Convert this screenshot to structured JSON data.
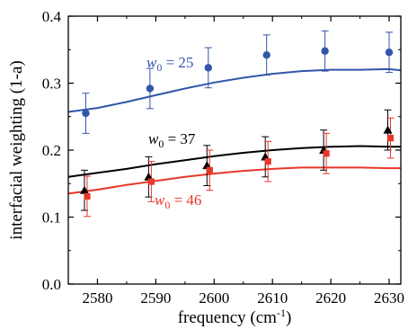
{
  "chart_data": {
    "type": "scatter",
    "xlabel_main": "frequency (cm",
    "xlabel_sup": "-1",
    "xlabel_tail": ")",
    "ylabel": "interfacial weighting (1-a)",
    "xlim": [
      2575,
      2632
    ],
    "ylim": [
      0.0,
      0.4
    ],
    "xticks": [
      2580,
      2590,
      2600,
      2610,
      2620,
      2630
    ],
    "yticks": [
      0.0,
      0.1,
      0.2,
      0.3,
      0.4
    ],
    "ytick_labels": [
      "0.0",
      "0.1",
      "0.2",
      "0.3",
      "0.4"
    ],
    "grid": false,
    "series": [
      {
        "annotation": {
          "symbol": "w",
          "sub": "0",
          "rest": " = 25"
        },
        "color": "#3355aa",
        "marker": "circle",
        "x": [
          2578,
          2589,
          2599,
          2609,
          2619,
          2630
        ],
        "y": [
          0.255,
          0.292,
          0.323,
          0.342,
          0.348,
          0.346
        ],
        "err": [
          0.03,
          0.03,
          0.03,
          0.03,
          0.03,
          0.03
        ],
        "curve": {
          "x": [
            2575,
            2580,
            2585,
            2590,
            2595,
            2600,
            2605,
            2610,
            2615,
            2620,
            2625,
            2630,
            2632
          ],
          "y": [
            0.257,
            0.263,
            0.272,
            0.282,
            0.292,
            0.301,
            0.308,
            0.314,
            0.318,
            0.32,
            0.32,
            0.321,
            0.319
          ]
        }
      },
      {
        "annotation": {
          "symbol": "w",
          "sub": "0",
          "rest": " = 37"
        },
        "color": "#000000",
        "marker": "triangle",
        "x": [
          2578,
          2589,
          2599,
          2609,
          2619,
          2630
        ],
        "y": [
          0.14,
          0.16,
          0.177,
          0.19,
          0.2,
          0.23
        ],
        "err": [
          0.03,
          0.03,
          0.03,
          0.03,
          0.03,
          0.03
        ],
        "curve": {
          "x": [
            2575,
            2580,
            2585,
            2590,
            2595,
            2600,
            2605,
            2610,
            2615,
            2620,
            2625,
            2630,
            2632
          ],
          "y": [
            0.16,
            0.166,
            0.172,
            0.179,
            0.185,
            0.191,
            0.196,
            0.2,
            0.203,
            0.205,
            0.206,
            0.205,
            0.205
          ]
        }
      },
      {
        "annotation": {
          "symbol": "w",
          "sub": "0",
          "rest": " = 46"
        },
        "color": "#e8362a",
        "marker": "square",
        "x": [
          2578,
          2589,
          2599,
          2609,
          2619,
          2630
        ],
        "y": [
          0.131,
          0.153,
          0.17,
          0.183,
          0.195,
          0.218
        ],
        "err": [
          0.03,
          0.03,
          0.03,
          0.03,
          0.03,
          0.03
        ],
        "curve": {
          "x": [
            2575,
            2580,
            2585,
            2590,
            2595,
            2600,
            2605,
            2610,
            2615,
            2620,
            2625,
            2630,
            2632
          ],
          "y": [
            0.135,
            0.141,
            0.148,
            0.154,
            0.16,
            0.165,
            0.169,
            0.172,
            0.174,
            0.174,
            0.174,
            0.173,
            0.173
          ]
        }
      }
    ]
  }
}
